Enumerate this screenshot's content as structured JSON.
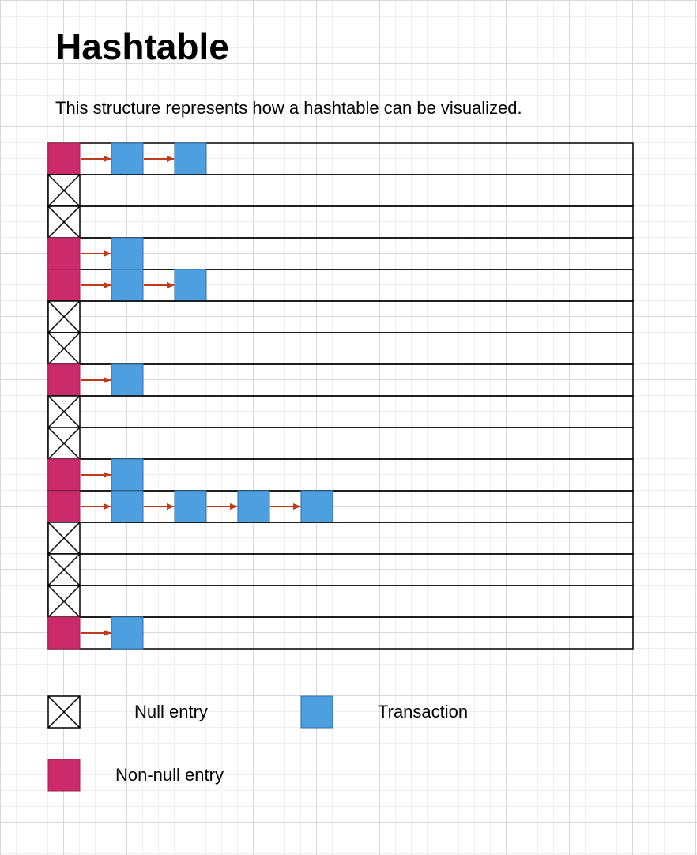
{
  "header": {
    "title": "Hashtable",
    "subtitle": "This structure represents how a hashtable can be visualized."
  },
  "diagram": {
    "buckets": [
      {
        "type": "non-null",
        "transactions": 2
      },
      {
        "type": "null",
        "transactions": 0
      },
      {
        "type": "null",
        "transactions": 0
      },
      {
        "type": "non-null",
        "transactions": 1
      },
      {
        "type": "non-null",
        "transactions": 2
      },
      {
        "type": "null",
        "transactions": 0
      },
      {
        "type": "null",
        "transactions": 0
      },
      {
        "type": "non-null",
        "transactions": 1
      },
      {
        "type": "null",
        "transactions": 0
      },
      {
        "type": "null",
        "transactions": 0
      },
      {
        "type": "non-null",
        "transactions": 1
      },
      {
        "type": "non-null",
        "transactions": 4
      },
      {
        "type": "null",
        "transactions": 0
      },
      {
        "type": "null",
        "transactions": 0
      },
      {
        "type": "null",
        "transactions": 0
      },
      {
        "type": "non-null",
        "transactions": 1
      }
    ]
  },
  "legend": {
    "null_label": "Null entry",
    "transaction_label": "Transaction",
    "non_null_label": "Non-null entry"
  },
  "colors": {
    "non_null_fill": "#cc2b6b",
    "non_null_stroke": "#a6204f",
    "transaction_fill": "#4d9fe0",
    "transaction_stroke": "#2e6fa8",
    "arrow": "#c0391a"
  }
}
